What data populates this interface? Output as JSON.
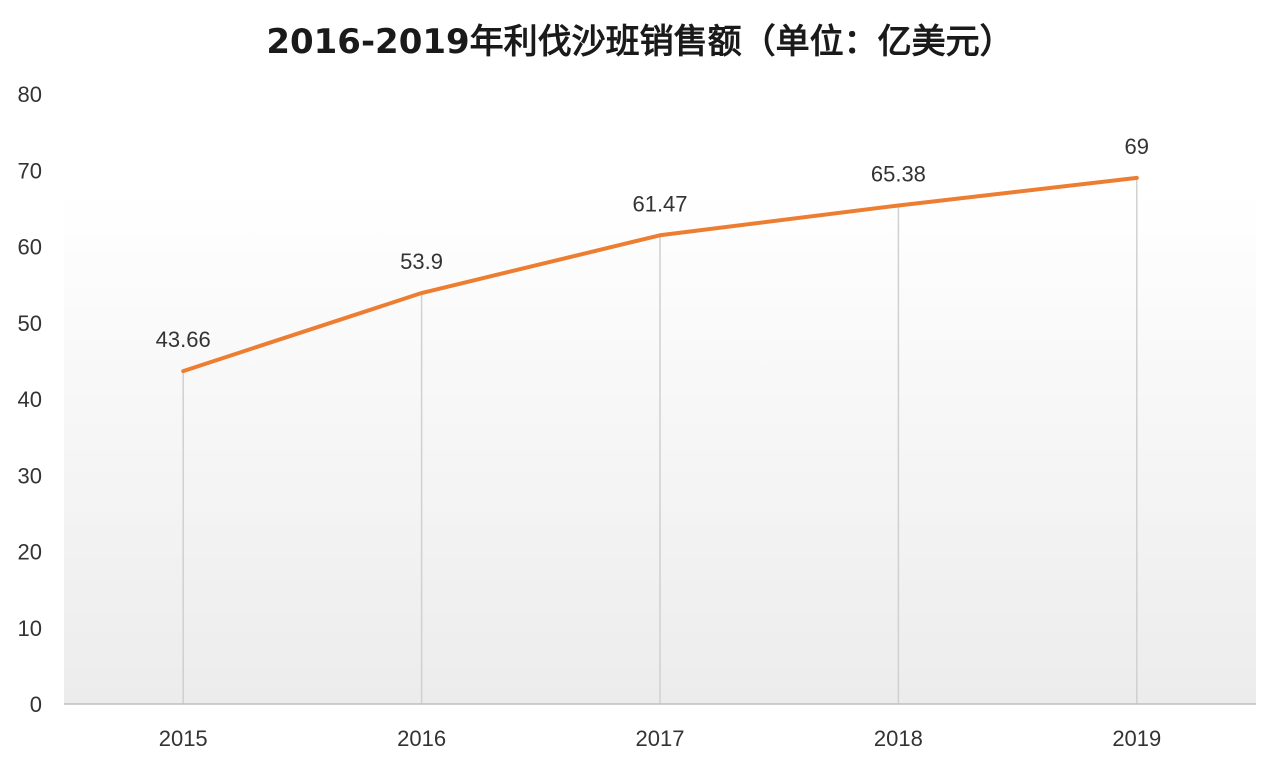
{
  "chart_data": {
    "type": "line",
    "title": "2016-2019年利伐沙班销售额（单位：亿美元）",
    "categories": [
      "2015",
      "2016",
      "2017",
      "2018",
      "2019"
    ],
    "series": [
      {
        "values": [
          43.66,
          53.9,
          61.47,
          65.38,
          69
        ],
        "color": "#ED7D31"
      }
    ],
    "data_labels": [
      "43.66",
      "53.9",
      "61.47",
      "65.38",
      "69"
    ],
    "ylim": [
      0,
      80
    ],
    "yticks": [
      "0",
      "10",
      "20",
      "30",
      "40",
      "50",
      "60",
      "70",
      "80"
    ],
    "xlabel": "",
    "ylabel": "",
    "grid": "vertical drop lines at categories",
    "legend": "none"
  }
}
